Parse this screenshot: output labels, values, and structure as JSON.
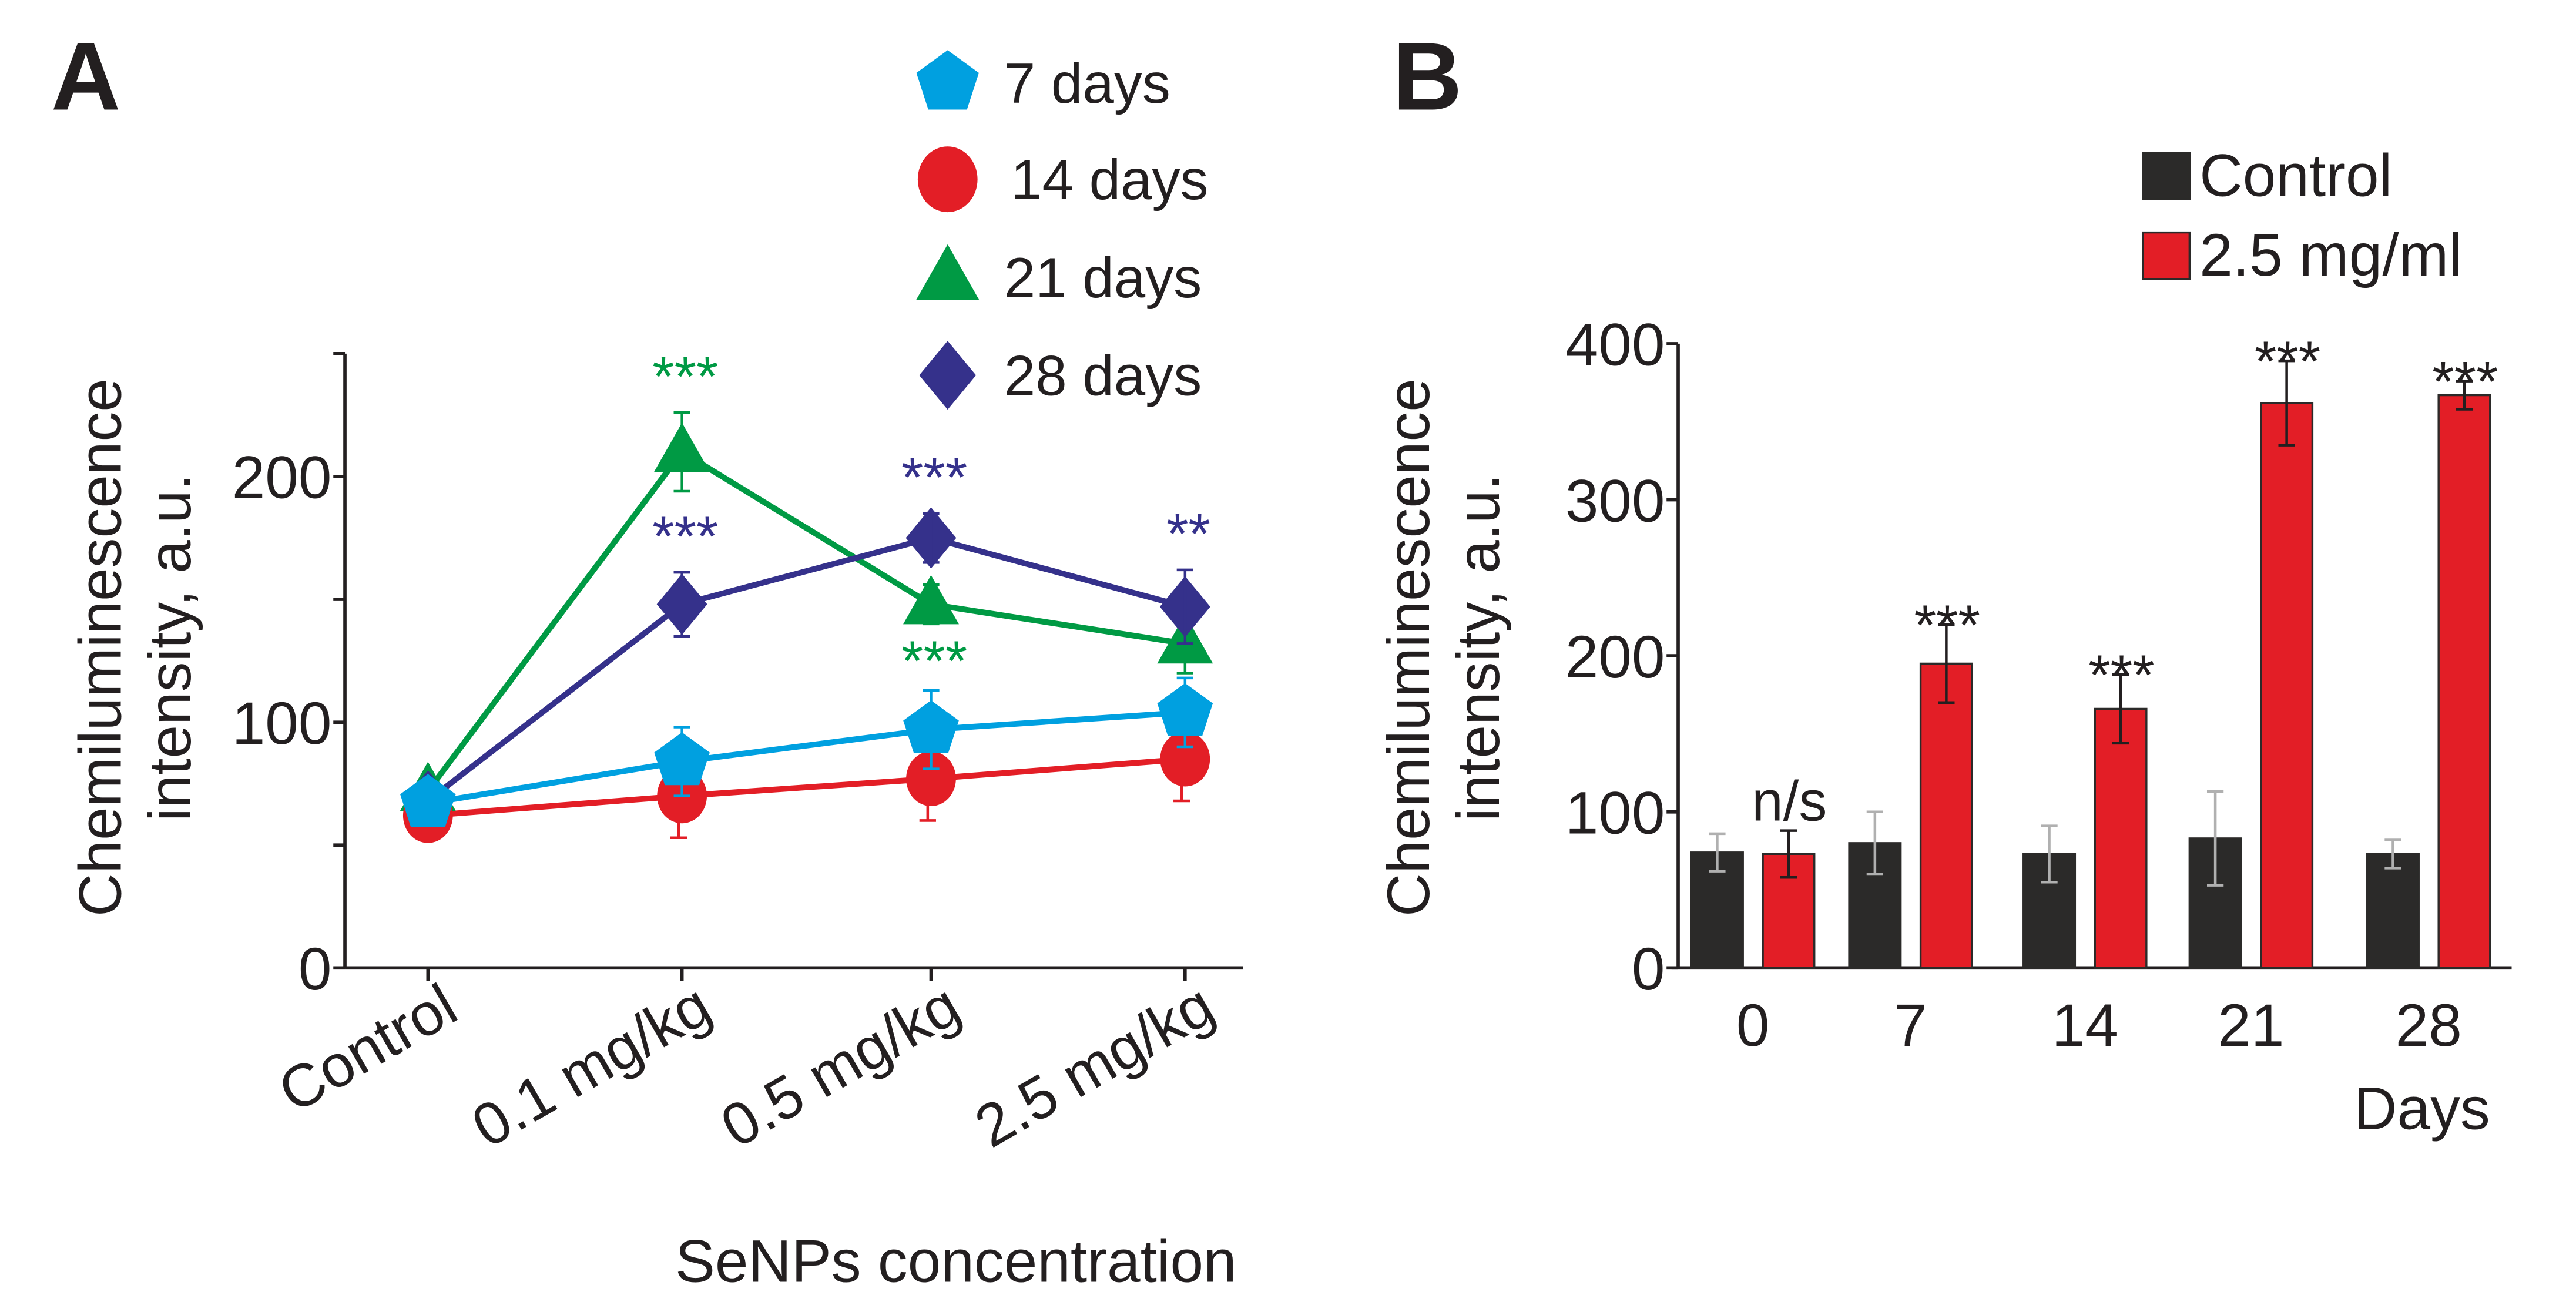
{
  "chart_data": [
    {
      "panel": "A",
      "type": "line",
      "xlabel": "SeNPs concentration",
      "ylabel": [
        "Chemiluminescence",
        "intensity, a.u."
      ],
      "categories": [
        "Control",
        "0.1 mg/kg",
        "0.5 mg/kg",
        "2.5 mg/kg"
      ],
      "ylim": [
        0,
        250
      ],
      "yticks": [
        0,
        100,
        200
      ],
      "legend_position": "top-right",
      "series": [
        {
          "name": "7 days",
          "color": "#00a0e0",
          "marker": "pentagon",
          "values": [
            67,
            84,
            97,
            104
          ],
          "errors": [
            4,
            14,
            16,
            14
          ],
          "annotations": [
            "",
            "",
            "",
            ""
          ]
        },
        {
          "name": "14 days",
          "color": "#e31e26",
          "marker": "circle",
          "values": [
            62,
            70,
            77,
            85
          ],
          "errors": [
            4,
            17,
            17,
            17
          ],
          "annotations": [
            "",
            "",
            "",
            ""
          ]
        },
        {
          "name": "21 days",
          "color": "#009a44",
          "marker": "triangle",
          "values": [
            72,
            210,
            148,
            132
          ],
          "errors": [
            4,
            16,
            8,
            12
          ],
          "annotations": [
            "",
            "***",
            "***",
            ""
          ]
        },
        {
          "name": "28 days",
          "color": "#35318b",
          "marker": "diamond",
          "values": [
            68,
            148,
            175,
            147
          ],
          "errors": [
            4,
            13,
            10,
            15
          ],
          "annotations": [
            "",
            "***",
            "***",
            "**"
          ]
        }
      ]
    },
    {
      "panel": "B",
      "type": "bar",
      "xlabel": "Days",
      "ylabel": [
        "Chemiluminescence",
        "intensity, a.u."
      ],
      "categories": [
        "0",
        "7",
        "14",
        "21",
        "28"
      ],
      "ylim": [
        0,
        400
      ],
      "yticks": [
        0,
        100,
        200,
        300,
        400
      ],
      "legend_position": "top-right",
      "series": [
        {
          "name": "Control",
          "color": "#2b2a29",
          "values": [
            74,
            80,
            73,
            83,
            73
          ],
          "errors": [
            12,
            20,
            18,
            30,
            9
          ]
        },
        {
          "name": "2.5 mg/ml",
          "color": "#e31e26",
          "values": [
            73,
            195,
            166,
            362,
            367
          ],
          "errors": [
            15,
            25,
            22,
            27,
            9
          ]
        }
      ],
      "annotations": [
        "n/s",
        "***",
        "***",
        "***",
        "***"
      ]
    }
  ],
  "panel_labels": [
    "A",
    "B"
  ]
}
